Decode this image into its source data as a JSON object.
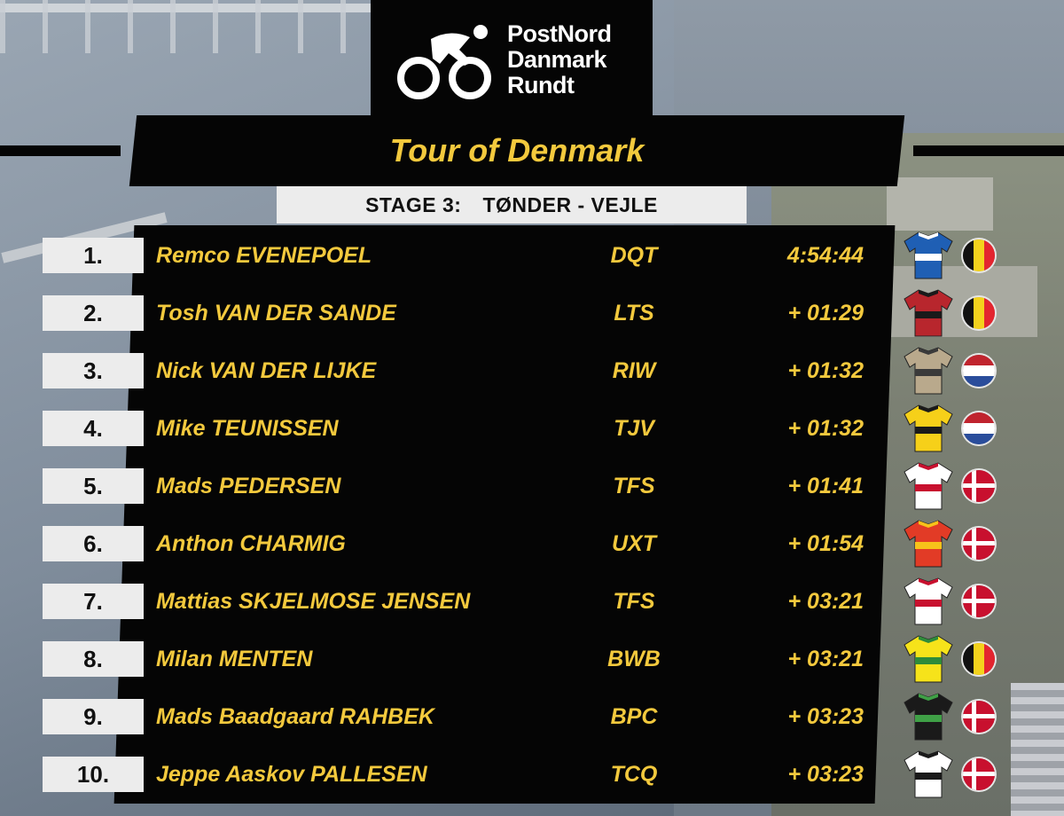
{
  "logo": {
    "line1": "PostNord",
    "line2": "Danmark",
    "line3": "Rundt"
  },
  "title": "Tour of Denmark",
  "stage": {
    "label": "STAGE 3:",
    "route": "TØNDER - VEJLE"
  },
  "colors": {
    "accent_yellow": "#f3c93d",
    "panel_black": "#050505",
    "rank_bg": "#ececec"
  },
  "results": [
    {
      "rank": "1.",
      "rider": "Remco EVENEPOEL",
      "team": "DQT",
      "time": "4:54:44",
      "flag": "belgium",
      "jersey": [
        "#1f5fb4",
        "#ffffff"
      ]
    },
    {
      "rank": "2.",
      "rider": "Tosh VAN DER SANDE",
      "team": "LTS",
      "time": "+ 01:29",
      "flag": "belgium",
      "jersey": [
        "#b8262d",
        "#1a1a1a"
      ]
    },
    {
      "rank": "3.",
      "rider": "Nick VAN DER LIJKE",
      "team": "RIW",
      "time": "+ 01:32",
      "flag": "netherlands",
      "jersey": [
        "#b9a98c",
        "#3a3a3a"
      ]
    },
    {
      "rank": "4.",
      "rider": "Mike TEUNISSEN",
      "team": "TJV",
      "time": "+ 01:32",
      "flag": "netherlands",
      "jersey": [
        "#f6d019",
        "#1a1a1a"
      ]
    },
    {
      "rank": "5.",
      "rider": "Mads PEDERSEN",
      "team": "TFS",
      "time": "+ 01:41",
      "flag": "denmark",
      "jersey": [
        "#ffffff",
        "#c8102e"
      ]
    },
    {
      "rank": "6.",
      "rider": "Anthon CHARMIG",
      "team": "UXT",
      "time": "+ 01:54",
      "flag": "denmark",
      "jersey": [
        "#e23b26",
        "#f7c21a"
      ]
    },
    {
      "rank": "7.",
      "rider": "Mattias SKJELMOSE JENSEN",
      "team": "TFS",
      "time": "+ 03:21",
      "flag": "denmark",
      "jersey": [
        "#ffffff",
        "#c8102e"
      ]
    },
    {
      "rank": "8.",
      "rider": "Milan MENTEN",
      "team": "BWB",
      "time": "+ 03:21",
      "flag": "belgium",
      "jersey": [
        "#f6e31a",
        "#2e8b3a"
      ]
    },
    {
      "rank": "9.",
      "rider": "Mads Baadgaard RAHBEK",
      "team": "BPC",
      "time": "+ 03:23",
      "flag": "denmark",
      "jersey": [
        "#1a1a1a",
        "#3fa046"
      ]
    },
    {
      "rank": "10.",
      "rider": "Jeppe Aaskov PALLESEN",
      "team": "TCQ",
      "time": "+ 03:23",
      "flag": "denmark",
      "jersey": [
        "#ffffff",
        "#1a1a1a"
      ]
    }
  ]
}
